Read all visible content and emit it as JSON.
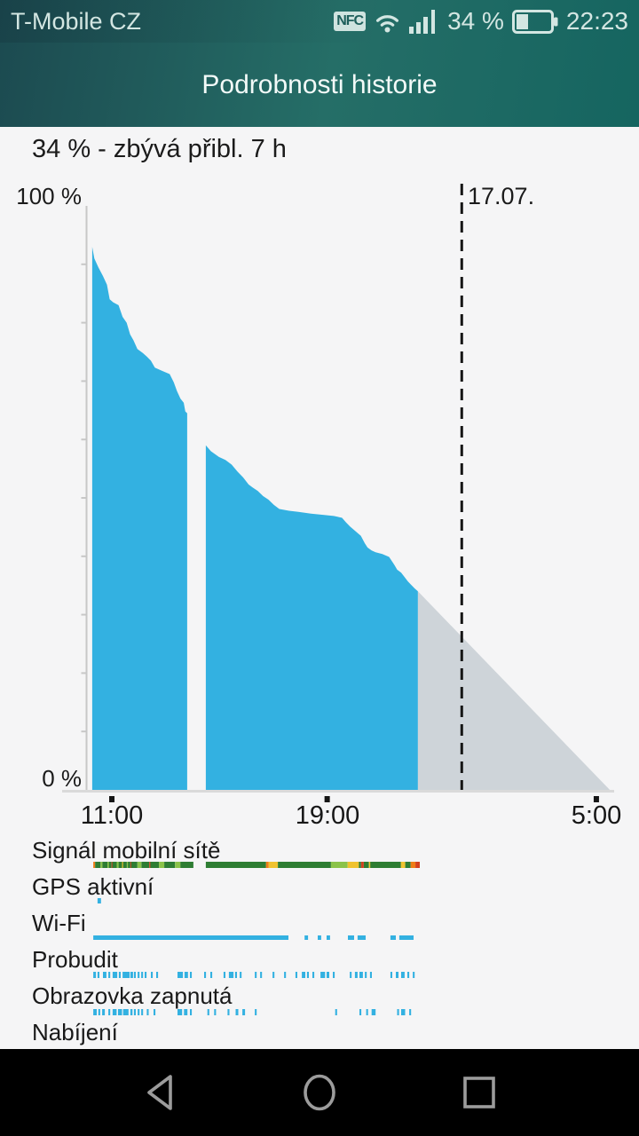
{
  "status_bar": {
    "carrier": "T-Mobile CZ",
    "nfc_label": "NFC",
    "battery_percent": "34 %",
    "time": "22:23"
  },
  "header": {
    "title": "Podrobnosti historie"
  },
  "summary": {
    "text": "34 % - zbývá přibl. 7 h"
  },
  "chart_data": {
    "type": "area",
    "y_axis": {
      "top_label": "100 %",
      "bottom_label": "0 %",
      "range": [
        0,
        100
      ],
      "tick_step": 10
    },
    "x_axis": {
      "unit": "hour_of_day_from_11",
      "ticks": [
        {
          "t": 11,
          "label": "11:00"
        },
        {
          "t": 19,
          "label": "19:00"
        },
        {
          "t": 29,
          "label": "5:00"
        }
      ],
      "range": [
        10.0,
        29.8
      ]
    },
    "day_marker": {
      "t": 24,
      "label": "17.07."
    },
    "battery_pct_series": [
      {
        "name": "before-shutdown",
        "points": [
          [
            10.27,
            93
          ],
          [
            10.35,
            91
          ],
          [
            10.5,
            89.5
          ],
          [
            10.67,
            88
          ],
          [
            10.82,
            86.5
          ],
          [
            10.92,
            84
          ],
          [
            11.05,
            83.5
          ],
          [
            11.25,
            83
          ],
          [
            11.4,
            81
          ],
          [
            11.55,
            80
          ],
          [
            11.68,
            78
          ],
          [
            11.8,
            77
          ],
          [
            11.95,
            75.5
          ],
          [
            12.15,
            74.8
          ],
          [
            12.3,
            74.2
          ],
          [
            12.45,
            73.5
          ],
          [
            12.6,
            72.3
          ],
          [
            12.85,
            71.8
          ],
          [
            13.15,
            71.2
          ],
          [
            13.3,
            69.8
          ],
          [
            13.42,
            68.3
          ],
          [
            13.55,
            67
          ],
          [
            13.67,
            66.3
          ],
          [
            13.73,
            64.8
          ],
          [
            13.8,
            64.5
          ]
        ]
      },
      {
        "name": "after-restart",
        "points": [
          [
            14.49,
            59
          ],
          [
            14.68,
            58
          ],
          [
            14.98,
            57
          ],
          [
            15.22,
            56.5
          ],
          [
            15.45,
            55.7
          ],
          [
            15.67,
            54.5
          ],
          [
            15.88,
            53.5
          ],
          [
            16.08,
            52.3
          ],
          [
            16.23,
            51.8
          ],
          [
            16.42,
            51.2
          ],
          [
            16.62,
            50.3
          ],
          [
            16.82,
            49.7
          ],
          [
            17.02,
            48.8
          ],
          [
            17.22,
            48.1
          ],
          [
            17.58,
            47.8
          ],
          [
            17.93,
            47.6
          ],
          [
            18.4,
            47.3
          ],
          [
            18.85,
            47.1
          ],
          [
            19.25,
            46.9
          ],
          [
            19.55,
            46.6
          ],
          [
            19.7,
            45.8
          ],
          [
            19.85,
            45.1
          ],
          [
            20.05,
            44.3
          ],
          [
            20.25,
            43.5
          ],
          [
            20.4,
            42.2
          ],
          [
            20.5,
            41.5
          ],
          [
            20.65,
            41
          ],
          [
            20.8,
            40.7
          ],
          [
            21.05,
            40.4
          ],
          [
            21.3,
            39.9
          ],
          [
            21.5,
            38.5
          ],
          [
            21.6,
            37.7
          ],
          [
            21.75,
            37.2
          ],
          [
            21.85,
            36.6
          ],
          [
            22.0,
            35.7
          ],
          [
            22.1,
            35.2
          ],
          [
            22.25,
            34.5
          ],
          [
            22.37,
            34
          ]
        ]
      }
    ],
    "projection": {
      "points": [
        [
          22.37,
          34
        ],
        [
          29.5,
          0
        ]
      ]
    },
    "rows": [
      {
        "label": "Signál mobilní sítě",
        "type": "colored",
        "segments": [
          [
            10.31,
            10.38,
            "o"
          ],
          [
            10.38,
            10.58,
            "g"
          ],
          [
            10.58,
            10.65,
            "l"
          ],
          [
            10.65,
            10.84,
            "g"
          ],
          [
            10.84,
            10.89,
            "l"
          ],
          [
            10.89,
            10.99,
            "g"
          ],
          [
            10.99,
            11.02,
            "r"
          ],
          [
            11.02,
            11.18,
            "g"
          ],
          [
            11.18,
            11.25,
            "l"
          ],
          [
            11.25,
            11.38,
            "g"
          ],
          [
            11.38,
            11.42,
            "y"
          ],
          [
            11.42,
            11.56,
            "g"
          ],
          [
            11.56,
            11.6,
            "l"
          ],
          [
            11.6,
            11.69,
            "g"
          ],
          [
            11.69,
            11.72,
            "r"
          ],
          [
            11.72,
            11.95,
            "g"
          ],
          [
            11.95,
            12.1,
            "l"
          ],
          [
            12.1,
            12.39,
            "g"
          ],
          [
            12.39,
            12.43,
            "r"
          ],
          [
            12.43,
            12.75,
            "g"
          ],
          [
            12.75,
            12.95,
            "l"
          ],
          [
            12.95,
            13.35,
            "g"
          ],
          [
            13.35,
            13.55,
            "l"
          ],
          [
            13.55,
            14.03,
            "g"
          ],
          [
            14.49,
            16.73,
            "g"
          ],
          [
            16.73,
            16.83,
            "o"
          ],
          [
            16.83,
            17.17,
            "y"
          ],
          [
            17.17,
            19.14,
            "g"
          ],
          [
            19.14,
            19.76,
            "l"
          ],
          [
            19.76,
            20.18,
            "y"
          ],
          [
            20.18,
            20.26,
            "g"
          ],
          [
            20.26,
            20.36,
            "r"
          ],
          [
            20.36,
            20.55,
            "g"
          ],
          [
            20.55,
            20.6,
            "y"
          ],
          [
            20.6,
            21.74,
            "g"
          ],
          [
            21.74,
            21.9,
            "y"
          ],
          [
            21.9,
            22.1,
            "g"
          ],
          [
            22.1,
            22.28,
            "o"
          ],
          [
            22.28,
            22.44,
            "r"
          ]
        ]
      },
      {
        "label": "GPS aktivní",
        "type": "blue",
        "segments": [
          [
            10.47,
            10.6
          ]
        ]
      },
      {
        "label": "Wi-Fi",
        "type": "blue",
        "segments": [
          [
            10.31,
            17.56
          ],
          [
            18.16,
            18.29
          ],
          [
            18.65,
            18.78
          ],
          [
            18.98,
            19.11
          ],
          [
            19.77,
            20.0
          ],
          [
            20.13,
            20.43
          ],
          [
            21.35,
            21.55
          ],
          [
            21.68,
            22.21
          ]
        ]
      },
      {
        "label": "Probudit",
        "type": "blue",
        "segments": [
          [
            10.31,
            10.41
          ],
          [
            10.47,
            10.54
          ],
          [
            10.67,
            10.8
          ],
          [
            10.87,
            10.94
          ],
          [
            11.03,
            11.2
          ],
          [
            11.26,
            11.33
          ],
          [
            11.4,
            11.66
          ],
          [
            11.69,
            11.79
          ],
          [
            11.82,
            11.89
          ],
          [
            11.96,
            12.03
          ],
          [
            12.09,
            12.16
          ],
          [
            12.22,
            12.29
          ],
          [
            12.45,
            12.52
          ],
          [
            12.65,
            12.72
          ],
          [
            13.44,
            13.64
          ],
          [
            13.7,
            13.83
          ],
          [
            13.9,
            13.97
          ],
          [
            14.43,
            14.5
          ],
          [
            14.66,
            14.73
          ],
          [
            15.15,
            15.22
          ],
          [
            15.35,
            15.52
          ],
          [
            15.58,
            15.65
          ],
          [
            15.75,
            15.82
          ],
          [
            16.31,
            16.38
          ],
          [
            16.51,
            16.58
          ],
          [
            16.97,
            17.04
          ],
          [
            17.4,
            17.47
          ],
          [
            17.82,
            17.89
          ],
          [
            18.06,
            18.19
          ],
          [
            18.25,
            18.32
          ],
          [
            18.45,
            18.52
          ],
          [
            18.75,
            18.92
          ],
          [
            18.98,
            19.08
          ],
          [
            19.21,
            19.28
          ],
          [
            19.84,
            19.91
          ],
          [
            20.03,
            20.13
          ],
          [
            20.2,
            20.33
          ],
          [
            20.4,
            20.47
          ],
          [
            20.59,
            20.66
          ],
          [
            21.35,
            21.42
          ],
          [
            21.55,
            21.65
          ],
          [
            21.75,
            21.88
          ],
          [
            21.98,
            22.05
          ],
          [
            22.18,
            22.25
          ]
        ]
      },
      {
        "label": "Obrazovka zapnutá",
        "type": "blue",
        "segments": [
          [
            10.31,
            10.44
          ],
          [
            10.5,
            10.57
          ],
          [
            10.64,
            10.74
          ],
          [
            10.87,
            10.94
          ],
          [
            11.03,
            11.18
          ],
          [
            11.23,
            11.38
          ],
          [
            11.42,
            11.62
          ],
          [
            11.69,
            11.77
          ],
          [
            11.82,
            11.89
          ],
          [
            11.96,
            12.03
          ],
          [
            12.09,
            12.16
          ],
          [
            12.3,
            12.37
          ],
          [
            12.55,
            12.62
          ],
          [
            13.44,
            13.61
          ],
          [
            13.68,
            13.81
          ],
          [
            13.9,
            13.97
          ],
          [
            14.55,
            14.62
          ],
          [
            14.8,
            14.87
          ],
          [
            15.3,
            15.37
          ],
          [
            15.6,
            15.7
          ],
          [
            15.85,
            15.95
          ],
          [
            16.31,
            16.38
          ],
          [
            19.3,
            19.37
          ],
          [
            20.2,
            20.27
          ],
          [
            20.45,
            20.52
          ],
          [
            20.65,
            20.8
          ],
          [
            21.6,
            21.67
          ],
          [
            21.75,
            21.9
          ],
          [
            22.05,
            22.12
          ]
        ]
      },
      {
        "label": "Nabíjení",
        "type": "blue",
        "segments": []
      }
    ],
    "colors": {
      "battery": "#33b1e1",
      "projection": "#ced4d9",
      "axis": "#c7c7c7",
      "baseline": "#dadada",
      "marker": "#161616",
      "g": "#2e7d33",
      "l": "#8bc34a",
      "y": "#f0c330",
      "o": "#ef7d18",
      "r": "#d4401f"
    }
  }
}
